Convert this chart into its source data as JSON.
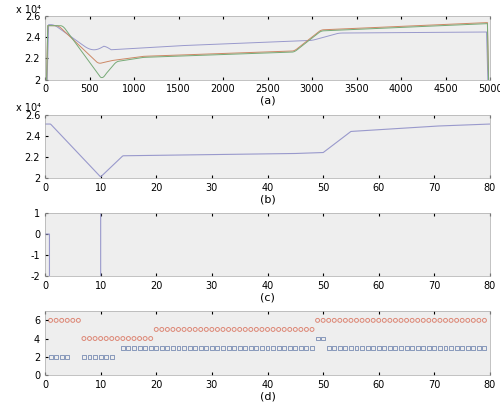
{
  "panel_a": {
    "xlim": [
      0,
      5000
    ],
    "ylim": [
      20000,
      26000
    ],
    "yticks": [
      20000,
      22000,
      24000,
      26000
    ],
    "ytick_labels": [
      "2",
      "2.2",
      "2.4",
      "2.6"
    ],
    "xticks": [
      0,
      500,
      1000,
      1500,
      2000,
      2500,
      3000,
      3500,
      4000,
      4500,
      5000
    ],
    "ylabel_exp": "x 10⁴",
    "label": "(a)",
    "color_blue": "#9999cc",
    "color_orange": "#cc8866",
    "color_green": "#77aa77"
  },
  "panel_b": {
    "xlim": [
      0,
      80
    ],
    "ylim": [
      20000,
      26000
    ],
    "yticks": [
      20000,
      22000,
      24000,
      26000
    ],
    "ytick_labels": [
      "2",
      "2.2",
      "2.4",
      "2.6"
    ],
    "xticks": [
      0,
      10,
      20,
      30,
      40,
      50,
      60,
      70,
      80
    ],
    "ylabel_exp": "x 10⁴",
    "label": "(b)",
    "color": "#9999cc"
  },
  "panel_c": {
    "xlim": [
      0,
      80
    ],
    "ylim": [
      -2,
      1
    ],
    "yticks": [
      -2,
      -1,
      0,
      1
    ],
    "xticks": [
      0,
      10,
      20,
      30,
      40,
      50,
      60,
      70,
      80
    ],
    "label": "(c)",
    "color": "#9999cc"
  },
  "panel_d": {
    "xlim": [
      0,
      80
    ],
    "ylim": [
      0,
      7
    ],
    "yticks": [
      0,
      2,
      4,
      6
    ],
    "xticks": [
      0,
      10,
      20,
      30,
      40,
      50,
      60,
      70,
      80
    ],
    "label": "(d)",
    "color_orange": "#dd8877",
    "color_blue": "#8899bb"
  },
  "bg_color": "#eeeeee",
  "fig_bg": "#ffffff"
}
